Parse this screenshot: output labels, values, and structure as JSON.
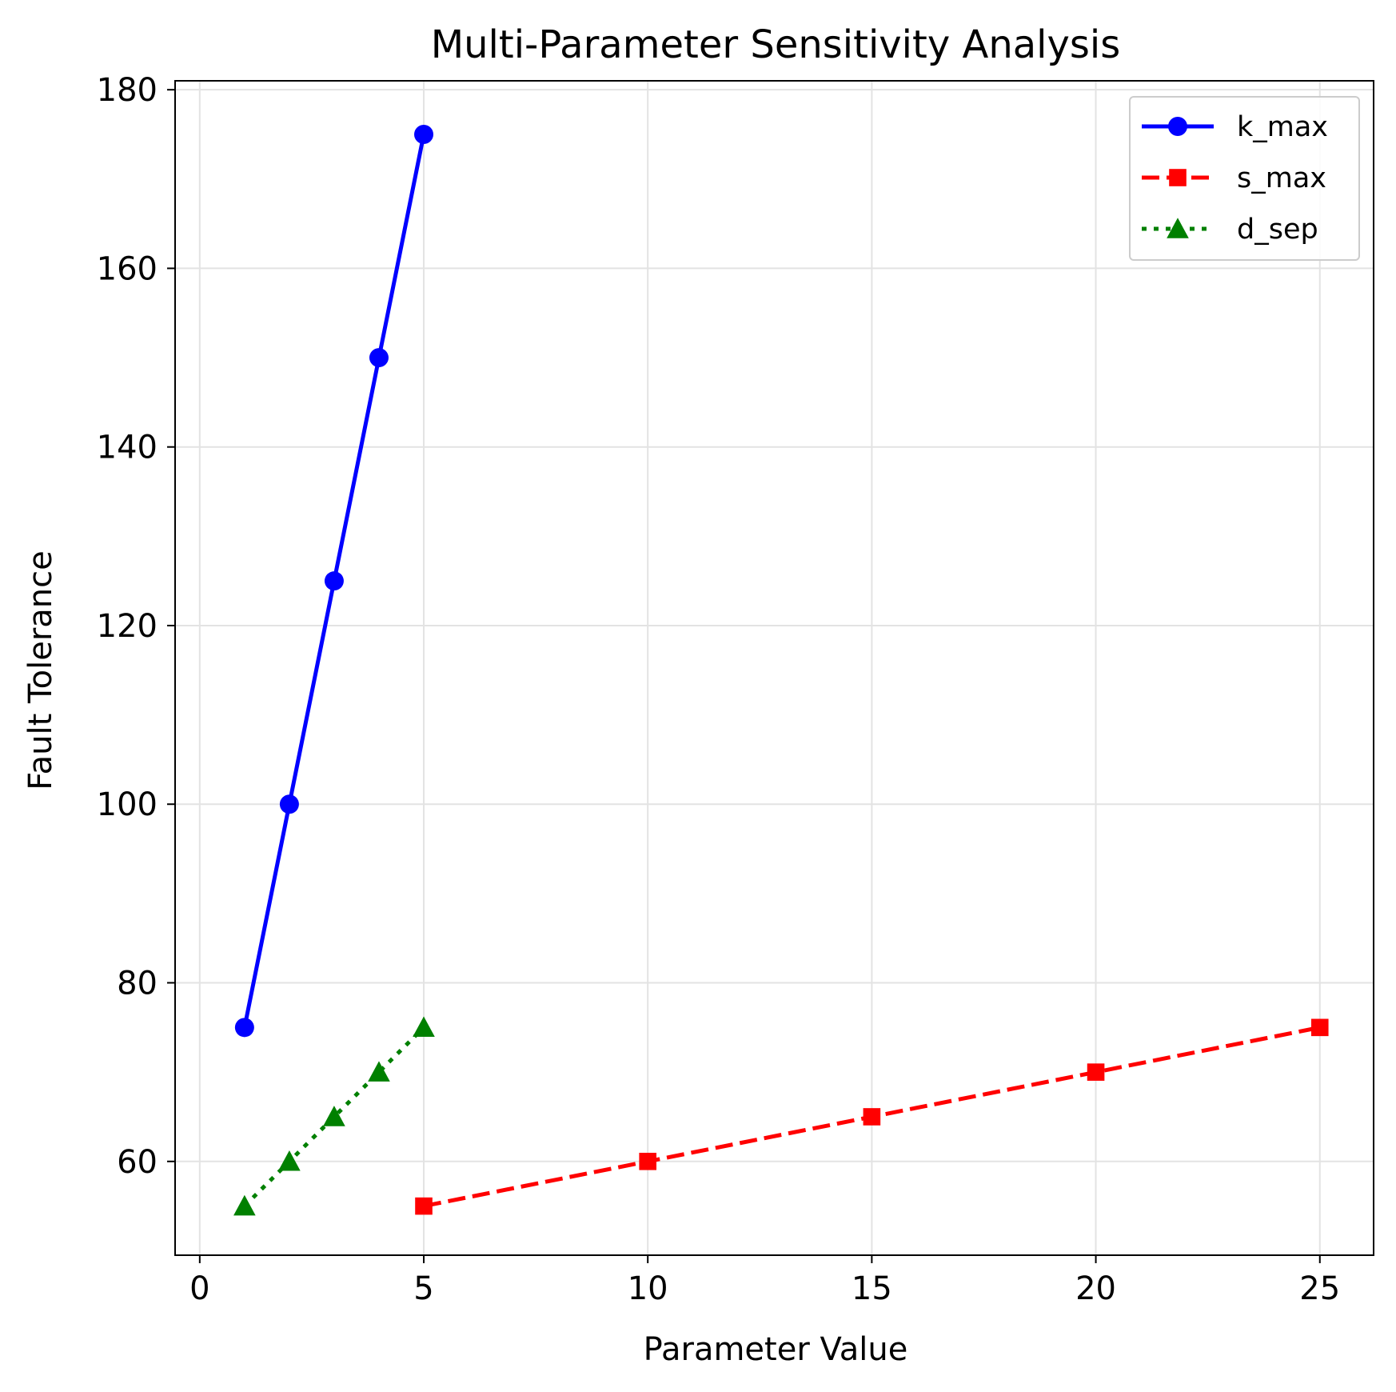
{
  "chart_data": {
    "type": "line",
    "title": "Multi-Parameter Sensitivity Analysis",
    "xlabel": "Parameter Value",
    "ylabel": "Fault Tolerance",
    "xlim": [
      -0.55,
      26.2
    ],
    "ylim": [
      49.5,
      181
    ],
    "xticks": [
      0,
      5,
      10,
      15,
      20,
      25
    ],
    "yticks": [
      60,
      80,
      100,
      120,
      140,
      160,
      180
    ],
    "grid": true,
    "legend_position": "top-right",
    "series": [
      {
        "name": "k_max",
        "color": "#0000ff",
        "line_style": "solid",
        "marker": "circle",
        "x": [
          1,
          2,
          3,
          4,
          5
        ],
        "y": [
          75,
          100,
          125,
          150,
          175
        ]
      },
      {
        "name": "s_max",
        "color": "#ff0000",
        "line_style": "dashed",
        "marker": "square",
        "x": [
          5,
          10,
          15,
          20,
          25
        ],
        "y": [
          55,
          60,
          65,
          70,
          75
        ]
      },
      {
        "name": "d_sep",
        "color": "#008000",
        "line_style": "dotted",
        "marker": "triangle",
        "x": [
          1,
          2,
          3,
          4,
          5
        ],
        "y": [
          55,
          60,
          65,
          70,
          75
        ]
      }
    ]
  }
}
